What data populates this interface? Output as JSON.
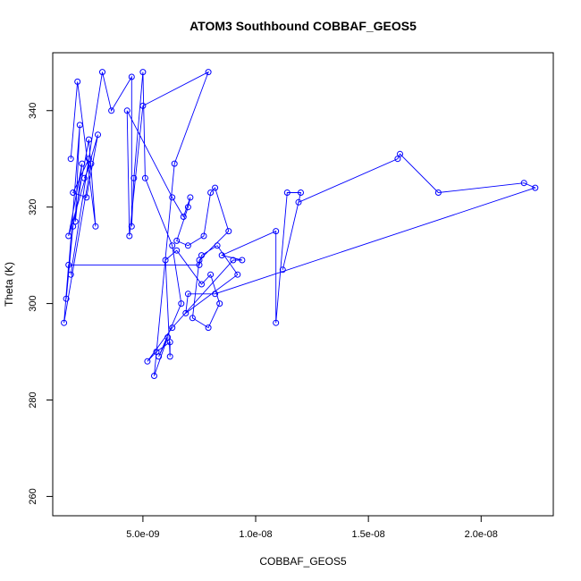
{
  "chart_data": {
    "type": "scatter",
    "title": "ATOM3 Southbound COBBAF_GEOS5",
    "xlabel": "COBBAF_GEOS5",
    "ylabel": "Theta (K)",
    "xlim": [
      1e-09,
      2.32e-08
    ],
    "ylim": [
      256,
      352
    ],
    "x_ticks": [
      5e-09,
      1e-08,
      1.5e-08,
      2e-08
    ],
    "x_tick_labels": [
      "5.0e-09",
      "1.0e-08",
      "1.5e-08",
      "2.0e-08"
    ],
    "y_ticks": [
      260,
      280,
      300,
      320,
      340
    ],
    "y_tick_labels": [
      "260",
      "280",
      "300",
      "320",
      "340"
    ],
    "grid": false,
    "color": "#0000ff",
    "points": [
      [
        1.8e-09,
        330
      ],
      [
        2.1e-09,
        346
      ],
      [
        2.9e-09,
        316
      ],
      [
        2.6e-09,
        334
      ],
      [
        1.9e-09,
        316
      ],
      [
        1.6e-09,
        301
      ],
      [
        2.2e-09,
        337
      ],
      [
        2e-09,
        317
      ],
      [
        2.3e-09,
        329
      ],
      [
        1.7e-09,
        314
      ],
      [
        3e-09,
        335
      ],
      [
        2.5e-09,
        322
      ],
      [
        1.9e-09,
        323
      ],
      [
        2.6e-09,
        330
      ],
      [
        1.8e-09,
        306
      ],
      [
        3.2e-09,
        348
      ],
      [
        3.6e-09,
        340
      ],
      [
        4.5e-09,
        347
      ],
      [
        4.5e-09,
        316
      ],
      [
        4.6e-09,
        326
      ],
      [
        5e-09,
        348
      ],
      [
        5.1e-09,
        326
      ],
      [
        6.3e-09,
        312
      ],
      [
        6.7e-09,
        300
      ],
      [
        5.7e-09,
        289
      ],
      [
        6.1e-09,
        293
      ],
      [
        5.5e-09,
        285
      ],
      [
        6.4e-09,
        329
      ],
      [
        7.9e-09,
        348
      ],
      [
        5e-09,
        341
      ],
      [
        4.4e-09,
        314
      ],
      [
        4.3e-09,
        340
      ],
      [
        6.3e-09,
        322
      ],
      [
        6.8e-09,
        318
      ],
      [
        7.1e-09,
        322
      ],
      [
        7e-09,
        320
      ],
      [
        6.5e-09,
        313
      ],
      [
        7e-09,
        312
      ],
      [
        7.7e-09,
        314
      ],
      [
        8e-09,
        323
      ],
      [
        8.2e-09,
        324
      ],
      [
        8.8e-09,
        315
      ],
      [
        7.5e-09,
        309
      ],
      [
        7.2e-09,
        297
      ],
      [
        7.9e-09,
        295
      ],
      [
        8.4e-09,
        300
      ],
      [
        8e-09,
        306
      ],
      [
        7.6e-09,
        304
      ],
      [
        6.5e-09,
        311
      ],
      [
        6e-09,
        309
      ],
      [
        6.2e-09,
        289
      ],
      [
        6.2e-09,
        292
      ],
      [
        5.6e-09,
        290
      ],
      [
        5.2e-09,
        288
      ],
      [
        6.3e-09,
        295
      ],
      [
        9e-09,
        309
      ],
      [
        9.4e-09,
        309
      ],
      [
        8.5e-09,
        310
      ],
      [
        1.09e-08,
        315
      ],
      [
        1.09e-08,
        296
      ],
      [
        1.14e-08,
        323
      ],
      [
        1.2e-08,
        323
      ],
      [
        1.12e-08,
        307
      ],
      [
        1.19e-08,
        321
      ],
      [
        1.63e-08,
        330
      ],
      [
        1.64e-08,
        331
      ],
      [
        1.81e-08,
        323
      ],
      [
        2.19e-08,
        325
      ],
      [
        2.24e-08,
        324
      ],
      [
        8.2e-09,
        302
      ],
      [
        7e-09,
        302
      ],
      [
        6.9e-09,
        298
      ],
      [
        9.2e-09,
        306
      ],
      [
        8.3e-09,
        312
      ],
      [
        7.6e-09,
        310
      ],
      [
        7.5e-09,
        308
      ],
      [
        1.7e-09,
        308
      ],
      [
        1.5e-09,
        296
      ],
      [
        2.7e-09,
        329
      ],
      [
        2.4e-09,
        326
      ]
    ]
  }
}
